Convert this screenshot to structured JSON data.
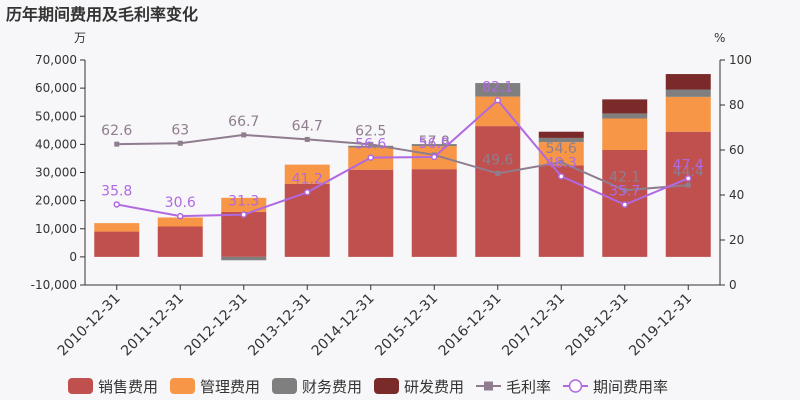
{
  "chart_data": {
    "type": "bar",
    "title": "历年期间费用及毛利率变化",
    "left_unit": "万",
    "right_unit": "%",
    "categories": [
      "2010-12-31",
      "2011-12-31",
      "2012-12-31",
      "2013-12-31",
      "2014-12-31",
      "2015-12-31",
      "2016-12-31",
      "2017-12-31",
      "2018-12-31",
      "2019-12-31"
    ],
    "ylim": [
      -10000,
      70000
    ],
    "y_ticks": [
      "-10,000",
      "0",
      "10,000",
      "20,000",
      "30,000",
      "40,000",
      "50,000",
      "60,000",
      "70,000"
    ],
    "y2lim": [
      0,
      100
    ],
    "y2_ticks": [
      "0",
      "20",
      "40",
      "60",
      "80",
      "100"
    ],
    "grid": false,
    "legend_position": "bottom",
    "series": [
      {
        "name": "销售费用",
        "kind": "bar",
        "color": "#c0504d",
        "values": [
          9000,
          10800,
          16000,
          26000,
          31000,
          31200,
          46500,
          32500,
          38000,
          44500
        ]
      },
      {
        "name": "管理费用",
        "kind": "bar",
        "color": "#f79646",
        "values": [
          3000,
          3200,
          5000,
          6800,
          7900,
          8200,
          10500,
          8300,
          11200,
          12400
        ]
      },
      {
        "name": "财务费用",
        "kind": "bar",
        "color": "#7f7f7f",
        "values": [
          0,
          0,
          -1200,
          0,
          600,
          700,
          4800,
          1500,
          1800,
          2600
        ]
      },
      {
        "name": "研发费用",
        "kind": "bar",
        "color": "#7b2a2a",
        "values": [
          0,
          0,
          0,
          0,
          0,
          0,
          0,
          2200,
          5000,
          5500
        ]
      },
      {
        "name": "毛利率",
        "kind": "line",
        "axis": "right",
        "color": "#8f7d8f",
        "values": [
          62.6,
          63,
          66.7,
          64.7,
          62.5,
          57.8,
          49.6,
          54.6,
          42.1,
          44.4
        ],
        "labels": [
          "62.6",
          "63",
          "66.7",
          "64.7",
          "62.5",
          "57.8",
          "49.6",
          "54.6",
          "42.1",
          "44.4"
        ]
      },
      {
        "name": "期间费用率",
        "kind": "line",
        "axis": "right",
        "color": "#b069e0",
        "values": [
          35.8,
          30.6,
          31.3,
          41.2,
          56.6,
          56.9,
          82.1,
          48.3,
          35.7,
          47.4
        ],
        "labels": [
          "35.8",
          "30.6",
          "31.3",
          "41.2",
          "56.6",
          "56.9",
          "82.1",
          "48.3",
          "35.7",
          "47.4"
        ]
      }
    ]
  }
}
